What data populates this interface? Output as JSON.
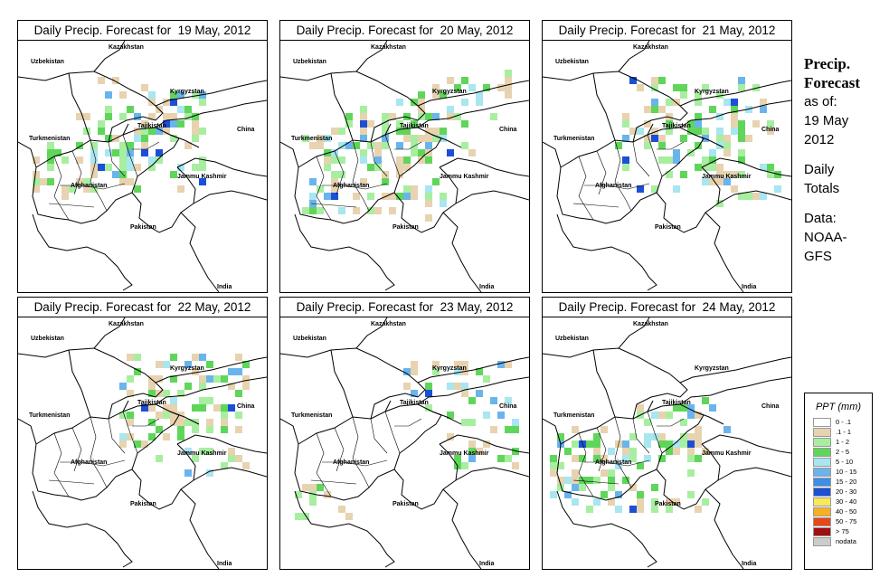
{
  "panels": [
    {
      "title": "Daily Precip. Forecast for  19 May, 2012",
      "pattern": 1
    },
    {
      "title": "Daily Precip. Forecast for  20 May, 2012",
      "pattern": 2
    },
    {
      "title": "Daily Precip. Forecast for  21 May, 2012",
      "pattern": 3
    },
    {
      "title": "Daily Precip. Forecast for  22 May, 2012",
      "pattern": 4
    },
    {
      "title": "Daily Precip. Forecast for  23 May, 2012",
      "pattern": 5
    },
    {
      "title": "Daily Precip. Forecast for  24 May, 2012",
      "pattern": 6
    }
  ],
  "places": {
    "uzbekistan": "Uzbekistan",
    "kazakhstan": "Kazakhstan",
    "kyrgyzstan": "Kyrgyzstan",
    "tajikistan": "Tajikistan",
    "turkmenistan": "Turkmenistan",
    "china": "China",
    "afghanistan": "Afghanistan",
    "jammu_kashmir": "Jammu Kashmir",
    "pakistan": "Pakistan",
    "india": "India"
  },
  "sidebar": {
    "title_line1": "Precip.",
    "title_line2": "Forecast",
    "asof_line1": "as of:",
    "asof_line2": "19 May",
    "asof_line3": "2012",
    "totals_line1": "Daily",
    "totals_line2": "Totals",
    "data_line1": "Data:",
    "data_line2": "NOAA-",
    "data_line3": "GFS"
  },
  "legend": {
    "title": "PPT (mm)",
    "items": [
      {
        "label": "0 - .1",
        "color": "#ffffff"
      },
      {
        "label": ".1 - 1",
        "color": "#e8d3b0"
      },
      {
        "label": "1 - 2",
        "color": "#a8eea0"
      },
      {
        "label": "2 - 5",
        "color": "#5fd65a"
      },
      {
        "label": "5 - 10",
        "color": "#a8e6f0"
      },
      {
        "label": "10 - 15",
        "color": "#6ab4ec"
      },
      {
        "label": "15 - 20",
        "color": "#3c8ee6"
      },
      {
        "label": "20 - 30",
        "color": "#1c4fd8"
      },
      {
        "label": "30 - 40",
        "color": "#f8e85a"
      },
      {
        "label": "40 - 50",
        "color": "#f8b020"
      },
      {
        "label": "50 - 75",
        "color": "#e84818"
      },
      {
        "label": "> 75",
        "color": "#a01010"
      },
      {
        "label": "nodata",
        "color": "#cccccc"
      }
    ]
  }
}
